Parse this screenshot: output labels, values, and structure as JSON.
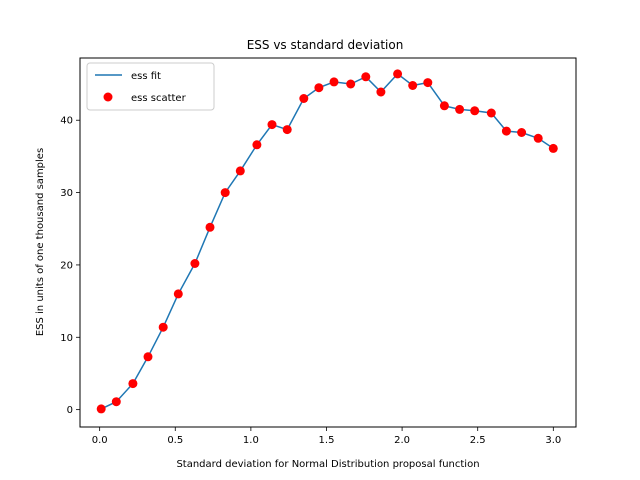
{
  "chart_data": {
    "type": "line",
    "title": "ESS vs standard deviation",
    "xlabel": "Standard deviation for Normal Distribution proposal function",
    "ylabel": "ESS in units of one thousand samples",
    "xlim": [
      -0.13,
      3.15
    ],
    "ylim": [
      -2.4,
      48.6
    ],
    "xticks": [
      0.0,
      0.5,
      1.0,
      1.5,
      2.0,
      2.5,
      3.0
    ],
    "xtick_labels": [
      "0.0",
      "0.5",
      "1.0",
      "1.5",
      "2.0",
      "2.5",
      "3.0"
    ],
    "yticks": [
      0,
      10,
      20,
      30,
      40
    ],
    "ytick_labels": [
      "0",
      "10",
      "20",
      "30",
      "40"
    ],
    "grid": false,
    "legend_position": "top-left",
    "x": [
      0.01,
      0.11,
      0.22,
      0.32,
      0.42,
      0.52,
      0.63,
      0.73,
      0.83,
      0.93,
      1.04,
      1.14,
      1.24,
      1.35,
      1.45,
      1.55,
      1.66,
      1.76,
      1.86,
      1.97,
      2.07,
      2.17,
      2.28,
      2.38,
      2.48,
      2.59,
      2.69,
      2.79,
      2.9,
      3.0
    ],
    "series": [
      {
        "name": "ess fit",
        "kind": "line",
        "color": "#1f77b4",
        "values": [
          0.1,
          1.1,
          3.6,
          7.3,
          11.4,
          16.0,
          20.2,
          25.2,
          30.0,
          33.0,
          36.6,
          39.4,
          38.7,
          43.0,
          44.5,
          45.3,
          45.0,
          46.0,
          43.9,
          46.4,
          44.8,
          45.2,
          42.0,
          41.5,
          41.3,
          41.0,
          38.5,
          38.3,
          37.5,
          36.1
        ]
      },
      {
        "name": "ess scatter",
        "kind": "scatter",
        "color": "#ff0000",
        "values": [
          0.1,
          1.1,
          3.6,
          7.3,
          11.4,
          16.0,
          20.2,
          25.2,
          30.0,
          33.0,
          36.6,
          39.4,
          38.7,
          43.0,
          44.5,
          45.3,
          45.0,
          46.0,
          43.9,
          46.4,
          44.8,
          45.2,
          42.0,
          41.5,
          41.3,
          41.0,
          38.5,
          38.3,
          37.5,
          36.1
        ]
      }
    ]
  }
}
